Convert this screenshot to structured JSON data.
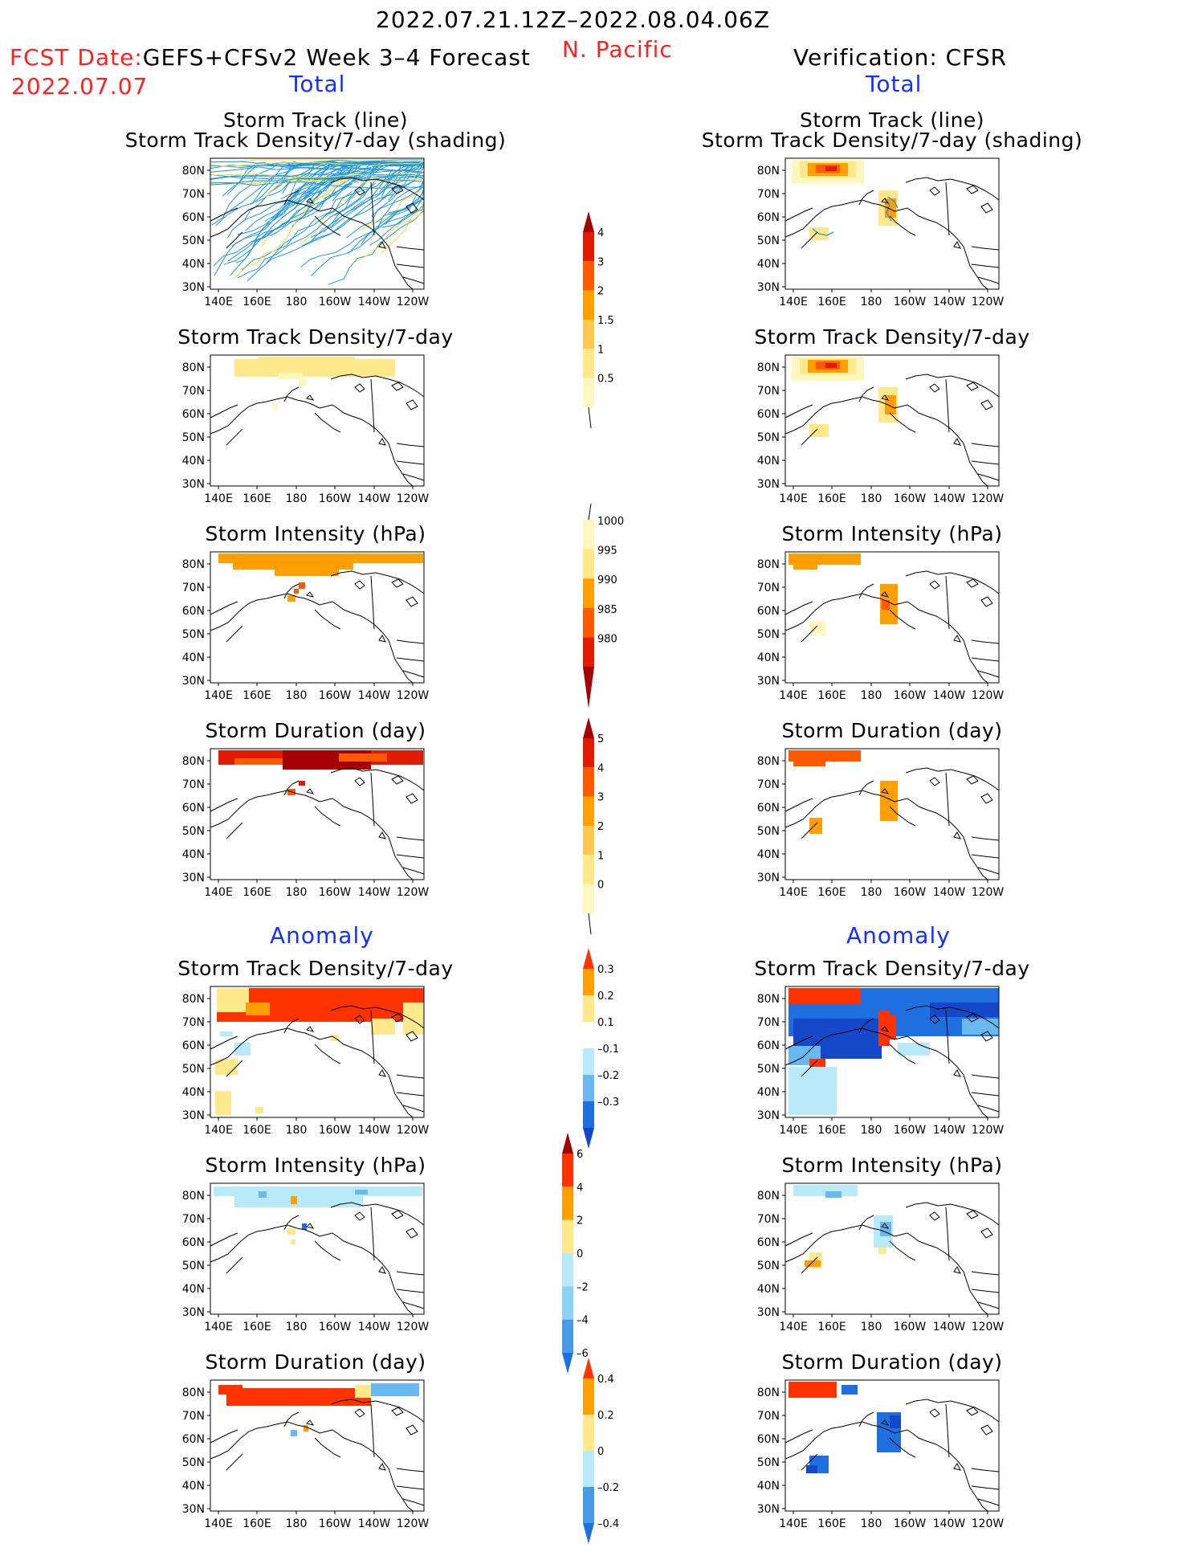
{
  "header": {
    "period": "2022.07.21.12Z–2022.08.04.06Z",
    "region": "N. Pacific",
    "fcst_label": "FCST Date:",
    "fcst_model": "GEFS+CFSv2 Week 3–4 Forecast",
    "fcst_date": "2022.07.07",
    "verification": "Verification: CFSR",
    "left_total": "Total",
    "right_total": "Total",
    "left_anomaly": "Anomaly",
    "right_anomaly": "Anomaly"
  },
  "axes": {
    "lon_labels": [
      "140E",
      "160E",
      "180",
      "160W",
      "140W",
      "120W"
    ],
    "lat_labels": [
      "80N",
      "70N",
      "60N",
      "50N",
      "40N",
      "30N"
    ]
  },
  "panels": {
    "left": [
      {
        "title1": "Storm Track (line)",
        "title2": "Storm Track Density/7-day (shading)",
        "field": "tracks_forecast"
      },
      {
        "title1": "Storm Track Density/7-day",
        "title2": "",
        "field": "density_forecast"
      },
      {
        "title1": "Storm Intensity (hPa)",
        "title2": "",
        "field": "intensity_forecast"
      },
      {
        "title1": "Storm Duration (day)",
        "title2": "",
        "field": "duration_forecast"
      },
      {
        "title1": "Storm Track Density/7-day",
        "title2": "",
        "field": "density_anom_forecast"
      },
      {
        "title1": "Storm Intensity (hPa)",
        "title2": "",
        "field": "intensity_anom_forecast"
      },
      {
        "title1": "Storm Duration (day)",
        "title2": "",
        "field": "duration_anom_forecast"
      }
    ],
    "right": [
      {
        "title1": "Storm Track (line)",
        "title2": "Storm Track Density/7-day (shading)",
        "field": "tracks_verif"
      },
      {
        "title1": "Storm Track Density/7-day",
        "title2": "",
        "field": "density_verif"
      },
      {
        "title1": "Storm Intensity (hPa)",
        "title2": "",
        "field": "intensity_verif"
      },
      {
        "title1": "Storm Duration (day)",
        "title2": "",
        "field": "duration_verif"
      },
      {
        "title1": "Storm Track Density/7-day",
        "title2": "",
        "field": "density_anom_verif"
      },
      {
        "title1": "Storm Intensity (hPa)",
        "title2": "",
        "field": "intensity_anom_verif"
      },
      {
        "title1": "Storm Duration (day)",
        "title2": "",
        "field": "duration_anom_verif"
      }
    ]
  },
  "colorbars": [
    {
      "name": "density",
      "labels": [
        "4",
        "3",
        "2",
        "1.5",
        "1",
        "0.5"
      ],
      "colors": [
        "#a50000",
        "#e01b00",
        "#ff5a00",
        "#ffa000",
        "#ffc94d",
        "#ffe98a",
        "#fff7c0"
      ],
      "ends": "top"
    },
    {
      "name": "intensity",
      "labels": [
        "1000",
        "995",
        "990",
        "985",
        "980"
      ],
      "colors": [
        "#fff7c0",
        "#ffe98a",
        "#ffa000",
        "#ff5a00",
        "#e01b00",
        "#a50000"
      ],
      "ends": "bottom"
    },
    {
      "name": "duration",
      "labels": [
        "5",
        "4",
        "3",
        "2",
        "1",
        "0"
      ],
      "colors": [
        "#a50000",
        "#e01b00",
        "#ff5a00",
        "#ffa000",
        "#ffc94d",
        "#ffe98a",
        "#fff7c0"
      ],
      "ends": "top"
    },
    {
      "name": "density_anomaly",
      "labels": [
        "0.3",
        "0.2",
        "0.1",
        "–0.1",
        "–0.2",
        "–0.3"
      ],
      "colors": [
        "#ff3300",
        "#ffa000",
        "#ffe98a",
        "#ffffff",
        "#b8eafa",
        "#6ab8f0",
        "#1e6fe0",
        "#1448c8"
      ],
      "ends": "both"
    },
    {
      "name": "intensity_anomaly",
      "labels": [
        "6",
        "4",
        "2",
        "0",
        "–2",
        "–4",
        "–6"
      ],
      "colors": [
        "#a50000",
        "#ff3300",
        "#ffa000",
        "#ffe98a",
        "#b8eafa",
        "#8cd2f5",
        "#4a9ae8",
        "#1e6fe0"
      ],
      "ends": "both"
    },
    {
      "name": "duration_anomaly",
      "labels": [
        "0.4",
        "0.2",
        "0",
        "–0.2",
        "–0.4"
      ],
      "colors": [
        "#ff3300",
        "#ffa000",
        "#ffe98a",
        "#b8eafa",
        "#4a9ae8",
        "#1e6fe0"
      ],
      "ends": "both"
    }
  ],
  "colors": {
    "track_line": "#1e96e6",
    "track_line_yellow": "#e8e030",
    "coast": "#000000"
  }
}
